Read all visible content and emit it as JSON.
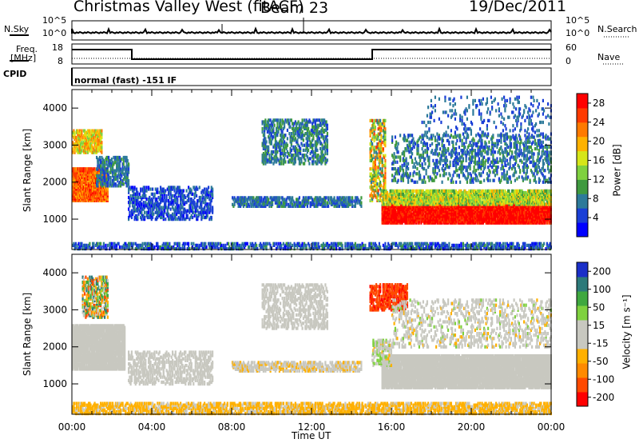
{
  "header": {
    "station": "Christmas Valley West (fitACF)",
    "beam": "Beam 23",
    "date": "19/Dec/2011"
  },
  "strips": {
    "nsky_label": "N.Sky",
    "nsearch_label": "N.Search",
    "noise_ticks": [
      "10^5",
      "10^0"
    ],
    "freq_label": "Freq.",
    "freq_unit": "[MHz]",
    "freq_ticks": [
      "18",
      "8"
    ],
    "nave_label": "Nave",
    "nave_ticks": [
      "60",
      "0"
    ],
    "cpid_label": "CPID",
    "cpid_text": "normal (fast) -151 IF"
  },
  "chart_data": [
    {
      "type": "heatmap",
      "name": "power",
      "ylabel": "Slant Range [km]",
      "xlabel": "",
      "x_ticks": [
        "00:00",
        "04:00",
        "08:00",
        "12:00",
        "16:00",
        "20:00",
        "00:00"
      ],
      "y_ticks": [
        "1000",
        "2000",
        "3000",
        "4000"
      ],
      "ylim": [
        180,
        4500
      ],
      "xlim_hours": [
        0,
        24
      ],
      "colorbar": {
        "label": "Power [dB]",
        "ticks": [
          "4",
          "8",
          "12",
          "16",
          "20",
          "24",
          "28"
        ],
        "range": [
          0,
          30
        ],
        "colors": [
          "#0000ff",
          "#1a3fd6",
          "#2d7a9a",
          "#3f9a3f",
          "#7fd13f",
          "#d6e619",
          "#ffb200",
          "#ff7a00",
          "#ff3a00",
          "#ff0000"
        ]
      }
    },
    {
      "type": "heatmap",
      "name": "velocity",
      "ylabel": "Slant Range [km]",
      "xlabel": "Time UT",
      "x_ticks": [
        "00:00",
        "04:00",
        "08:00",
        "12:00",
        "16:00",
        "20:00",
        "00:00"
      ],
      "y_ticks": [
        "1000",
        "2000",
        "3000",
        "4000"
      ],
      "ylim": [
        180,
        4500
      ],
      "xlim_hours": [
        0,
        24
      ],
      "colorbar": {
        "label": "Velocity [m s⁻¹]",
        "ticks": [
          "200",
          "100",
          "50",
          "15",
          "-15",
          "-50",
          "-100",
          "-200"
        ],
        "range": [
          -250,
          250
        ],
        "colors": [
          "#ff0000",
          "#ff4a00",
          "#ff8a00",
          "#ffb000",
          "#c8c8c0",
          "#c8c8c0",
          "#7fd13f",
          "#3fa83f",
          "#2d7a7a",
          "#1a2fc8"
        ]
      }
    }
  ]
}
